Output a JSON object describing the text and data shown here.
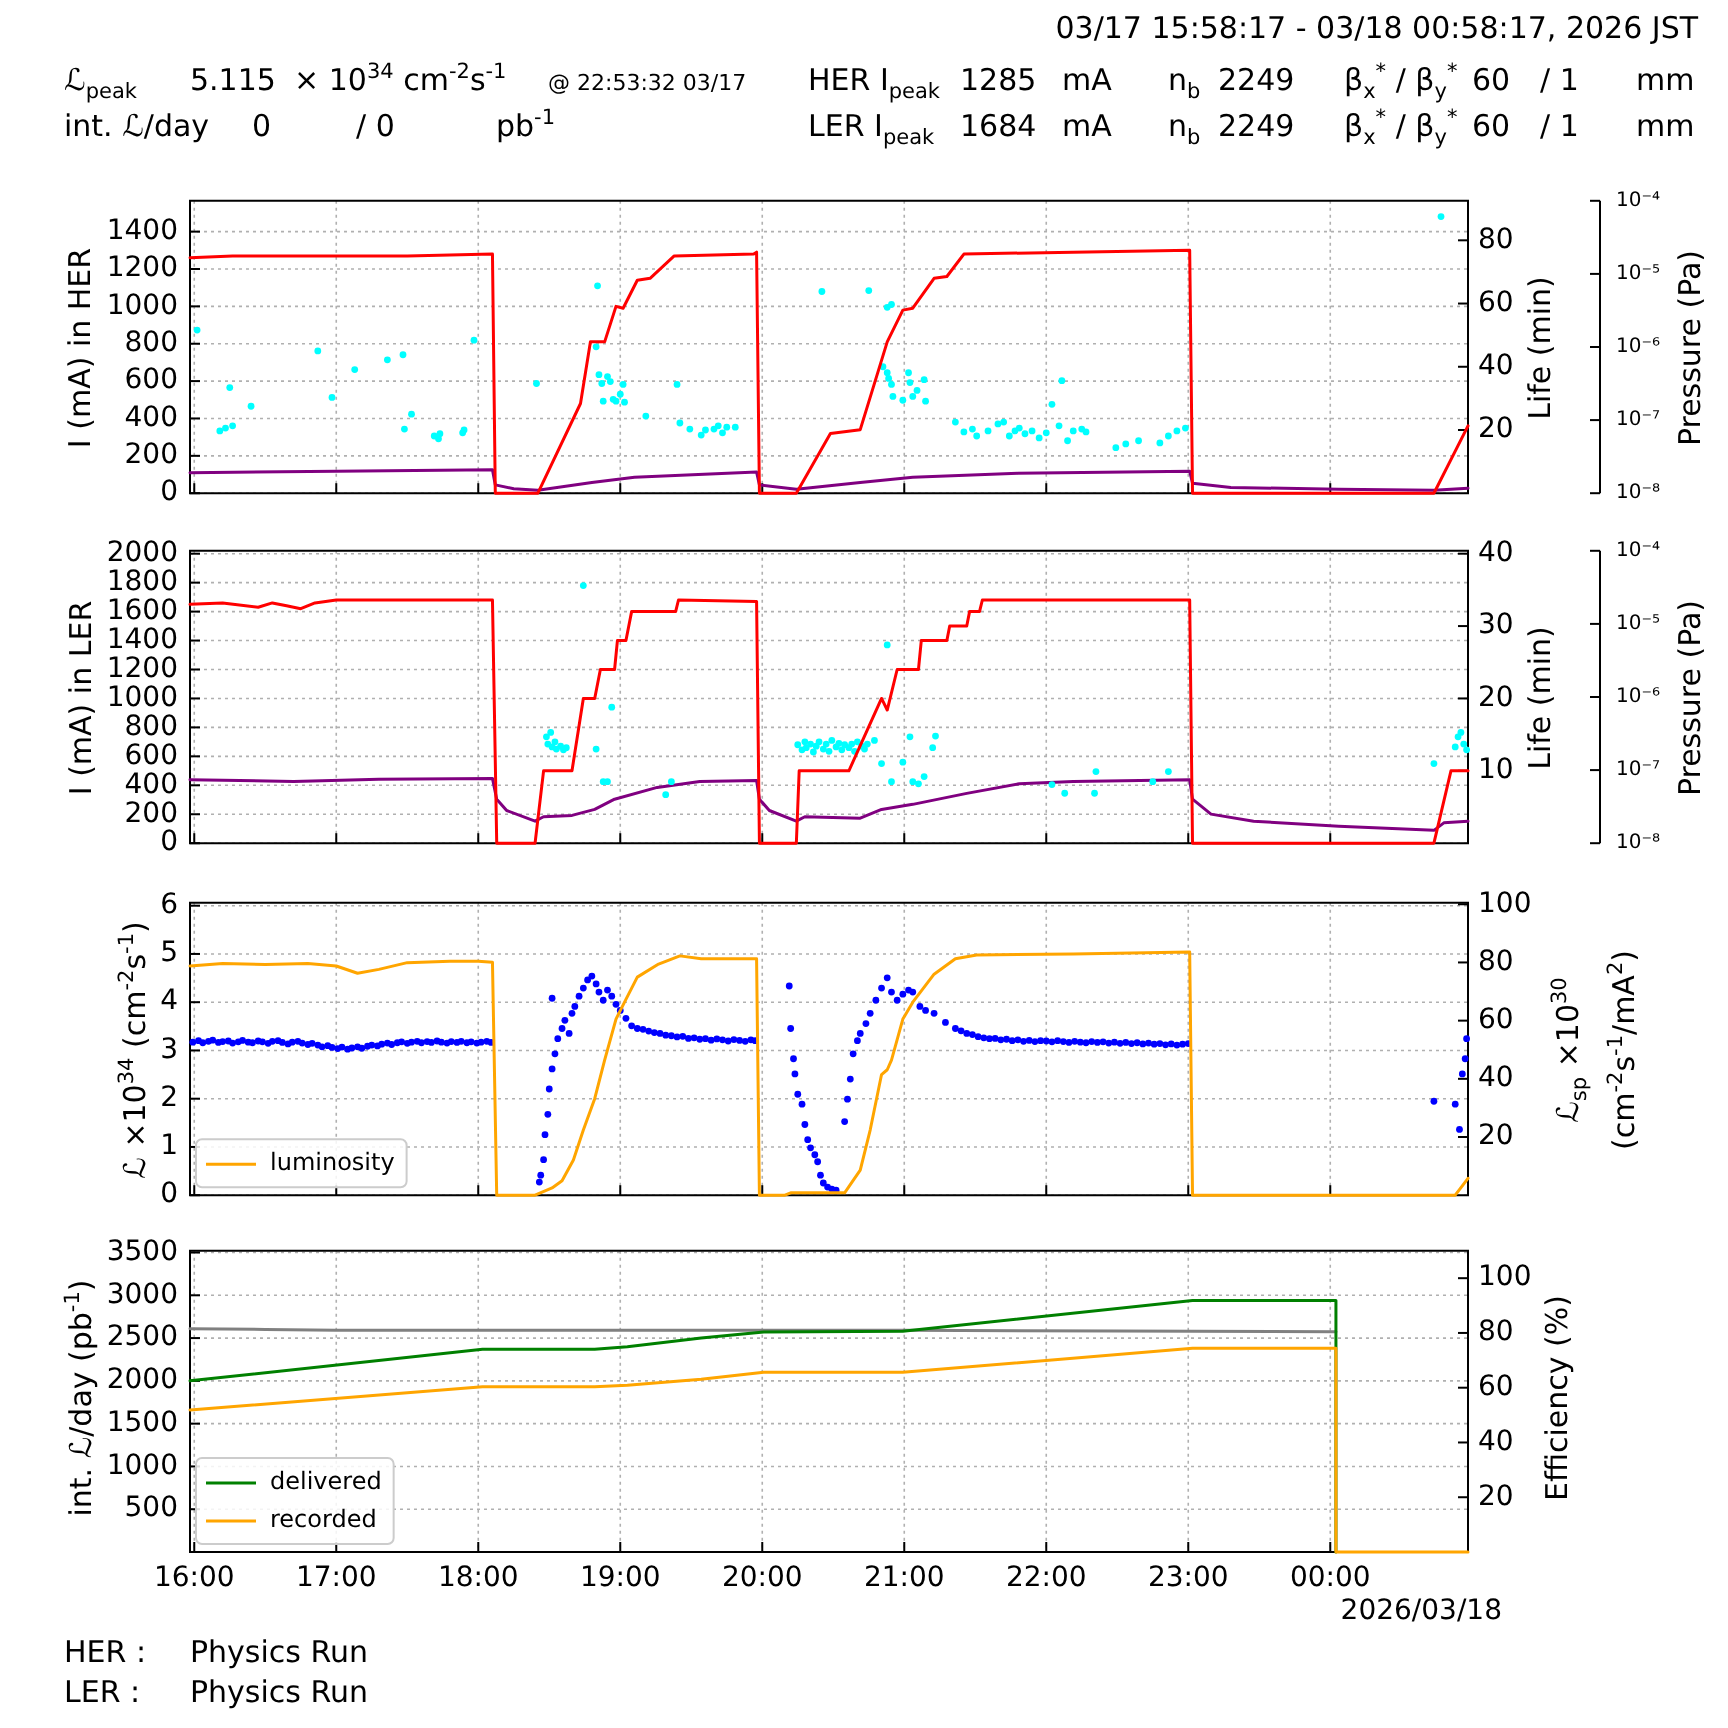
{
  "chart_data": [
    {
      "type": "other",
      "title": "03/17 15:58:17 - 03/18 00:58:17, 2026 JST",
      "annotations": [
        "ℒ$_{peak}$",
        "5.115",
        "× 10$^{34}$ cm$^{-2}$s$^{-1}$",
        "@ 22:53:32 03/17",
        "HER I$_{peak}$",
        "1285",
        "mA",
        "n$_{b}$",
        "2249",
        "β$_{x}$$^{*}$ / β$_{y}$$^{*}$",
        "60",
        "/ 1",
        "mm",
        "int. ℒ/day",
        "0",
        "/ 0",
        "pb$^{-1}$",
        "LER I$_{peak}$",
        "1684",
        "mA",
        "n$_{b}$",
        "2249",
        "β$_{x}$$^{*}$ / β$_{y}$$^{*}$",
        "60",
        "/ 1",
        "mm",
        "HER :",
        "Physics Run",
        "LER :",
        "Physics Run"
      ]
    },
    {
      "type": "line",
      "ylabel": "I (mA) in HER",
      "y2label": "Life (min)",
      "y3label": "Pressure (Pa)",
      "xlim": [
        15.97,
        24.97
      ],
      "xticks": [
        {
          "value": 16,
          "label": null
        },
        {
          "value": 17,
          "label": null
        },
        {
          "value": 18,
          "label": null
        },
        {
          "value": 19,
          "label": null
        },
        {
          "value": 20,
          "label": null
        },
        {
          "value": 21,
          "label": null
        },
        {
          "value": 22,
          "label": null
        },
        {
          "value": 23,
          "label": null
        },
        {
          "value": 24,
          "label": null
        }
      ],
      "ylim": [
        0,
        1565
      ],
      "yticks": [
        0,
        200,
        400,
        600,
        800,
        1000,
        1200,
        1400
      ],
      "y2lim": [
        0,
        92.5
      ],
      "y2ticks": [
        20,
        40,
        60,
        80
      ],
      "y3lim": [
        1e-08,
        0.0001
      ],
      "y3ticks": [
        {
          "value": 1e-08,
          "label": "10⁻⁸"
        },
        {
          "value": 1e-07,
          "label": "10⁻⁷"
        },
        {
          "value": 1e-06,
          "label": "10⁻⁶"
        },
        {
          "value": 1e-05,
          "label": "10⁻⁵"
        },
        {
          "value": 0.0001,
          "label": "10⁻⁴"
        }
      ],
      "log": "y3",
      "grid": true,
      "tick_labels": "y",
      "series": [
        {
          "type": "line",
          "color": "#800080",
          "axis": "y3",
          "x": [
            15.97,
            17.0,
            18.1,
            18.12,
            18.25,
            18.42,
            18.8,
            19.1,
            19.55,
            19.96,
            19.98,
            20.24,
            20.69,
            21.06,
            21.8,
            23.01,
            23.03,
            23.3,
            24.06,
            24.73,
            24.97
          ],
          "values": [
            1.9e-08,
            2e-08,
            2.1e-08,
            1.3e-08,
            1.15e-08,
            1.1e-08,
            1.4e-08,
            1.65e-08,
            1.8e-08,
            1.95e-08,
            1.3e-08,
            1.13e-08,
            1.4e-08,
            1.65e-08,
            1.87e-08,
            2e-08,
            1.37e-08,
            1.2e-08,
            1.13e-08,
            1.1e-08,
            1.17e-08
          ]
        },
        {
          "type": "scatter",
          "color": "#00ffff",
          "axis": "y2",
          "marker": "circle",
          "x": [
            16.02,
            16.18,
            16.22,
            16.25,
            16.27,
            16.4,
            16.87,
            16.97,
            17.13,
            17.36,
            17.47,
            17.48,
            17.53,
            17.69,
            17.72,
            17.73,
            17.89,
            17.9,
            17.97,
            18.41,
            18.84,
            18.83,
            18.85,
            18.87,
            18.88,
            18.91,
            18.93,
            18.95,
            18.97,
            19.0,
            19.02,
            19.03,
            19.18,
            19.4,
            19.42,
            19.49,
            19.57,
            19.6,
            19.66,
            19.69,
            19.72,
            19.75,
            19.81,
            20.42,
            20.75,
            20.88,
            20.91,
            20.85,
            20.88,
            20.89,
            20.91,
            20.92,
            20.99,
            21.03,
            21.04,
            21.06,
            21.09,
            21.14,
            21.15,
            21.36,
            21.42,
            21.48,
            21.51,
            21.59,
            21.66,
            21.7,
            21.74,
            21.78,
            21.81,
            21.85,
            21.9,
            21.95,
            22.0,
            22.04,
            22.09,
            22.11,
            22.15,
            22.19,
            22.25,
            22.28,
            22.49,
            22.56,
            22.65,
            22.8,
            22.86,
            22.92,
            22.98,
            24.78
          ],
          "values": [
            51.6,
            19.7,
            20.6,
            33.4,
            21.3,
            27.5,
            45.0,
            30.3,
            39.1,
            42.2,
            43.8,
            20.3,
            25.0,
            18.1,
            17.2,
            18.8,
            19.1,
            20.0,
            48.4,
            34.7,
            65.6,
            46.3,
            37.5,
            34.7,
            29.1,
            36.9,
            35.3,
            29.7,
            29.1,
            31.3,
            34.4,
            28.8,
            24.4,
            34.4,
            22.2,
            20.3,
            18.4,
            20.0,
            20.3,
            21.3,
            19.1,
            20.9,
            20.9,
            63.8,
            64.1,
            58.8,
            59.7,
            40.0,
            38.1,
            36.3,
            34.4,
            30.6,
            29.4,
            38.1,
            35.0,
            30.6,
            32.5,
            35.9,
            29.1,
            22.5,
            19.4,
            20.3,
            18.1,
            19.7,
            21.9,
            22.5,
            18.1,
            19.7,
            20.6,
            18.8,
            19.7,
            17.5,
            19.1,
            28.1,
            21.3,
            35.6,
            16.6,
            19.7,
            20.3,
            19.4,
            14.4,
            15.6,
            16.6,
            15.9,
            18.1,
            19.7,
            20.6,
            87.5
          ]
        },
        {
          "type": "line",
          "color": "#ff0000",
          "x": [
            15.97,
            16.27,
            16.94,
            17.5,
            18.1,
            18.12,
            18.42,
            18.72,
            18.79,
            18.89,
            18.97,
            19.02,
            19.12,
            19.21,
            19.38,
            19.94,
            19.96,
            19.98,
            20.24,
            20.48,
            20.69,
            20.88,
            20.99,
            21.06,
            21.21,
            21.3,
            21.42,
            22.19,
            23.01,
            23.03,
            24.73,
            24.97
          ],
          "values": [
            1260,
            1270,
            1270,
            1270,
            1280,
            0,
            0,
            480,
            810,
            810,
            1000,
            990,
            1140,
            1150,
            1270,
            1280,
            1290,
            0,
            0,
            320,
            340,
            810,
            980,
            990,
            1150,
            1160,
            1280,
            1290,
            1300,
            0,
            0,
            360
          ]
        }
      ]
    },
    {
      "type": "line",
      "ylabel": "I (mA) in LER",
      "y2label": "Life (min)",
      "y3label": "Pressure (Pa)",
      "xlim": [
        15.97,
        24.97
      ],
      "xticks": [
        {
          "value": 16,
          "label": null
        },
        {
          "value": 17,
          "label": null
        },
        {
          "value": 18,
          "label": null
        },
        {
          "value": 19,
          "label": null
        },
        {
          "value": 20,
          "label": null
        },
        {
          "value": 21,
          "label": null
        },
        {
          "value": 22,
          "label": null
        },
        {
          "value": 23,
          "label": null
        },
        {
          "value": 24,
          "label": null
        }
      ],
      "ylim": [
        0,
        2020
      ],
      "yticks": [
        0,
        200,
        400,
        600,
        800,
        1000,
        1200,
        1400,
        1600,
        1800,
        2000
      ],
      "y2lim": [
        0,
        40.4
      ],
      "y2ticks": [
        10,
        20,
        30,
        40
      ],
      "y3lim": [
        1e-08,
        0.0001
      ],
      "y3ticks": [
        {
          "value": 1e-08,
          "label": "10⁻⁸"
        },
        {
          "value": 1e-07,
          "label": "10⁻⁷"
        },
        {
          "value": 1e-06,
          "label": "10⁻⁶"
        },
        {
          "value": 1e-05,
          "label": "10⁻⁵"
        },
        {
          "value": 0.0001,
          "label": "10⁻⁴"
        }
      ],
      "log": "y3",
      "grid": true,
      "tick_labels": "y",
      "series": [
        {
          "type": "line",
          "color": "#800080",
          "axis": "y3",
          "x": [
            15.97,
            16.7,
            17.3,
            18.1,
            18.13,
            18.2,
            18.4,
            18.46,
            18.66,
            18.82,
            18.96,
            19.26,
            19.56,
            19.96,
            19.98,
            20.05,
            20.24,
            20.3,
            20.69,
            20.84,
            21.06,
            21.44,
            21.81,
            22.19,
            23.01,
            23.03,
            23.16,
            23.46,
            24.06,
            24.73,
            24.8,
            24.97
          ],
          "values": [
            7.4e-08,
            7e-08,
            7.5e-08,
            7.7e-08,
            4e-08,
            2.8e-08,
            2e-08,
            2.3e-08,
            2.4e-08,
            2.9e-08,
            4e-08,
            5.8e-08,
            7e-08,
            7.2e-08,
            4e-08,
            2.8e-08,
            2e-08,
            2.3e-08,
            2.2e-08,
            2.9e-08,
            3.4e-08,
            4.8e-08,
            6.5e-08,
            7e-08,
            7.4e-08,
            4e-08,
            2.5e-08,
            2e-08,
            1.7e-08,
            1.5e-08,
            1.9e-08,
            2e-08
          ]
        },
        {
          "type": "scatter",
          "color": "#00ffff",
          "axis": "y2",
          "marker": "circle",
          "x": [
            18.48,
            18.49,
            18.51,
            18.52,
            18.54,
            18.55,
            18.58,
            18.6,
            18.62,
            18.74,
            18.83,
            18.88,
            18.91,
            18.94,
            19.32,
            19.36,
            20.25,
            20.28,
            20.3,
            20.31,
            20.34,
            20.36,
            20.38,
            20.4,
            20.43,
            20.45,
            20.47,
            20.49,
            20.52,
            20.54,
            20.56,
            20.58,
            20.61,
            20.63,
            20.65,
            20.67,
            20.7,
            20.72,
            20.74,
            20.88,
            20.79,
            20.84,
            20.91,
            20.99,
            21.04,
            21.06,
            21.1,
            21.14,
            21.2,
            21.22,
            22.04,
            22.13,
            22.34,
            22.35,
            22.75,
            22.86,
            24.73,
            24.88,
            24.9,
            24.92,
            24.94,
            24.96
          ],
          "values": [
            14.7,
            13.7,
            15.3,
            13.3,
            14.0,
            13.0,
            13.4,
            12.9,
            13.2,
            35.6,
            13.0,
            8.5,
            8.5,
            18.8,
            6.7,
            8.5,
            13.6,
            12.9,
            14.0,
            13.2,
            13.7,
            12.6,
            13.4,
            14.0,
            13.0,
            13.7,
            12.7,
            14.2,
            13.3,
            13.8,
            12.9,
            13.6,
            13.2,
            13.7,
            12.7,
            14.0,
            13.4,
            13.0,
            13.7,
            27.4,
            14.2,
            11.0,
            8.5,
            11.2,
            14.7,
            8.5,
            8.2,
            9.2,
            13.2,
            14.8,
            8.1,
            6.9,
            6.9,
            9.9,
            8.5,
            9.9,
            11.0,
            13.3,
            14.7,
            15.3,
            13.7,
            12.9
          ]
        },
        {
          "type": "line",
          "color": "#ff0000",
          "x": [
            15.97,
            16.2,
            16.45,
            16.55,
            16.65,
            16.75,
            16.85,
            17.0,
            17.5,
            18.1,
            18.13,
            18.4,
            18.46,
            18.66,
            18.74,
            18.82,
            18.86,
            18.96,
            18.98,
            19.04,
            19.08,
            19.39,
            19.41,
            19.96,
            19.98,
            20.24,
            20.26,
            20.61,
            20.84,
            20.88,
            20.95,
            21.1,
            21.12,
            21.3,
            21.32,
            21.44,
            21.46,
            21.53,
            21.55,
            23.01,
            23.03,
            24.73,
            24.85,
            24.97
          ],
          "values": [
            1650,
            1660,
            1630,
            1660,
            1640,
            1620,
            1660,
            1680,
            1680,
            1680,
            0,
            0,
            500,
            500,
            1000,
            1000,
            1200,
            1200,
            1400,
            1400,
            1600,
            1600,
            1680,
            1670,
            0,
            0,
            500,
            500,
            1000,
            920,
            1200,
            1200,
            1400,
            1400,
            1500,
            1500,
            1600,
            1600,
            1680,
            1680,
            0,
            0,
            500,
            500
          ]
        }
      ]
    },
    {
      "type": "line",
      "ylabel": "ℒ ×10$^{34}$ (cm$^{-2}$s$^{-1}$)",
      "y2label": "ℒ$_{sp}$ ×10$^{30}$\n(cm$^{-2}$s$^{-1}$/mA$^{2}$)",
      "xlim": [
        15.97,
        24.97
      ],
      "xticks": [
        {
          "value": 16,
          "label": null
        },
        {
          "value": 17,
          "label": null
        },
        {
          "value": 18,
          "label": null
        },
        {
          "value": 19,
          "label": null
        },
        {
          "value": 20,
          "label": null
        },
        {
          "value": 21,
          "label": null
        },
        {
          "value": 22,
          "label": null
        },
        {
          "value": 23,
          "label": null
        },
        {
          "value": 24,
          "label": null
        }
      ],
      "ylim": [
        0,
        6.06
      ],
      "yticks": [
        0,
        1,
        2,
        3,
        4,
        5,
        6
      ],
      "y2lim": [
        0,
        100.5
      ],
      "y2ticks": [
        20,
        40,
        60,
        80,
        100
      ],
      "grid": true,
      "tick_labels": "y",
      "legend": "bottom left",
      "series": [
        {
          "type": "scatter",
          "color": "#0000ff",
          "axis": "y2",
          "marker": "circle",
          "x": [
            15.99,
            16.03,
            16.06,
            16.1,
            16.13,
            16.17,
            16.2,
            16.24,
            16.27,
            16.31,
            16.34,
            16.38,
            16.41,
            16.45,
            16.48,
            16.52,
            16.55,
            16.59,
            16.62,
            16.66,
            16.69,
            16.73,
            16.76,
            16.8,
            16.83,
            16.87,
            16.9,
            16.94,
            16.97,
            17.01,
            17.04,
            17.08,
            17.11,
            17.15,
            17.18,
            17.22,
            17.25,
            17.29,
            17.32,
            17.36,
            17.39,
            17.43,
            17.46,
            17.5,
            17.53,
            17.57,
            17.6,
            17.64,
            17.67,
            17.71,
            17.74,
            17.78,
            17.81,
            17.85,
            17.88,
            17.92,
            17.95,
            17.99,
            18.02,
            18.06,
            18.09,
            18.43,
            18.44,
            18.46,
            18.47,
            18.49,
            18.5,
            18.52,
            18.52,
            18.54,
            18.56,
            18.59,
            18.61,
            18.64,
            18.66,
            18.68,
            18.71,
            18.74,
            18.77,
            18.8,
            18.83,
            18.85,
            18.88,
            18.91,
            18.94,
            18.97,
            19.0,
            19.04,
            19.08,
            19.12,
            19.16,
            19.2,
            19.24,
            19.28,
            19.32,
            19.36,
            19.4,
            19.44,
            19.48,
            19.52,
            19.56,
            19.6,
            19.64,
            19.68,
            19.72,
            19.76,
            19.8,
            19.84,
            19.88,
            19.92,
            19.95,
            20.19,
            20.2,
            20.22,
            20.23,
            20.25,
            20.28,
            20.3,
            20.32,
            20.34,
            20.37,
            20.39,
            20.41,
            20.43,
            20.46,
            20.49,
            20.52,
            20.58,
            20.6,
            20.62,
            20.64,
            20.67,
            20.69,
            20.73,
            20.76,
            20.8,
            20.84,
            20.88,
            20.91,
            20.95,
            20.99,
            21.03,
            21.06,
            21.11,
            21.15,
            21.21,
            21.29,
            21.36,
            21.4,
            21.44,
            21.48,
            21.52,
            21.56,
            21.6,
            21.64,
            21.68,
            21.72,
            21.76,
            21.8,
            21.84,
            21.88,
            21.92,
            21.96,
            22.0,
            22.04,
            22.08,
            22.12,
            22.16,
            22.2,
            22.24,
            22.28,
            22.32,
            22.36,
            22.4,
            22.44,
            22.48,
            22.52,
            22.56,
            22.6,
            22.64,
            22.68,
            22.72,
            22.76,
            22.8,
            22.84,
            22.88,
            22.92,
            22.96,
            23.0,
            24.73,
            24.88,
            24.91,
            24.93,
            24.95,
            24.96
          ],
          "values": [
            52.6,
            53.1,
            52.4,
            52.9,
            53.3,
            52.5,
            52.8,
            53.0,
            52.3,
            52.7,
            53.2,
            52.6,
            52.4,
            53.0,
            52.7,
            52.2,
            52.9,
            53.1,
            52.5,
            52.0,
            52.6,
            52.9,
            52.3,
            51.8,
            52.2,
            51.6,
            51.0,
            51.4,
            50.8,
            50.4,
            50.9,
            50.2,
            50.6,
            51.0,
            50.5,
            51.2,
            51.6,
            51.3,
            51.9,
            52.3,
            51.8,
            52.4,
            52.7,
            52.2,
            52.6,
            52.9,
            52.4,
            52.8,
            52.5,
            53.0,
            52.6,
            52.3,
            52.8,
            52.5,
            52.9,
            52.4,
            52.7,
            52.3,
            52.6,
            52.9,
            52.5,
            4.5,
            6.9,
            12.2,
            20.8,
            27.8,
            36.5,
            43.4,
            67.7,
            48.6,
            53.8,
            57.3,
            60.1,
            55.6,
            62.5,
            64.9,
            68.4,
            71.2,
            74.0,
            75.3,
            72.6,
            69.8,
            67.0,
            70.5,
            68.4,
            65.6,
            63.5,
            60.8,
            58.2,
            57.3,
            57.0,
            56.4,
            55.9,
            55.6,
            55.0,
            54.8,
            54.4,
            54.6,
            53.9,
            54.1,
            53.6,
            53.8,
            53.3,
            53.7,
            53.4,
            53.0,
            53.5,
            53.2,
            52.9,
            53.4,
            53.1,
            71.9,
            57.3,
            46.9,
            41.7,
            34.7,
            31.3,
            24.3,
            19.1,
            16.3,
            13.9,
            11.5,
            6.9,
            4.2,
            2.8,
            2.1,
            1.7,
            25.3,
            33.0,
            39.9,
            48.6,
            53.1,
            55.6,
            59.0,
            62.5,
            67.0,
            71.2,
            74.7,
            69.8,
            67.0,
            69.1,
            70.5,
            69.8,
            64.9,
            63.5,
            62.5,
            59.4,
            57.3,
            56.5,
            55.6,
            55.2,
            54.5,
            54.1,
            53.8,
            53.9,
            53.4,
            53.6,
            53.1,
            53.4,
            52.9,
            53.2,
            52.8,
            53.1,
            53.0,
            52.7,
            53.1,
            52.8,
            52.5,
            52.9,
            52.6,
            52.4,
            52.8,
            52.5,
            52.7,
            52.3,
            52.6,
            52.2,
            52.5,
            52.1,
            52.4,
            52.0,
            52.3,
            51.9,
            52.1,
            51.7,
            52.0,
            51.6,
            51.9,
            52.1,
            32.3,
            31.3,
            22.6,
            41.7,
            46.9,
            53.8
          ]
        },
        {
          "type": "line",
          "name": "luminosity",
          "color": "#ffa500",
          "x": [
            15.97,
            16.2,
            16.5,
            16.8,
            17.0,
            17.15,
            17.3,
            17.5,
            17.8,
            18.0,
            18.1,
            18.13,
            18.4,
            18.52,
            18.59,
            18.67,
            18.74,
            18.82,
            18.89,
            18.97,
            19.04,
            19.12,
            19.27,
            19.42,
            19.57,
            19.96,
            19.98,
            20.16,
            20.2,
            20.58,
            20.69,
            20.76,
            20.84,
            20.88,
            20.91,
            20.99,
            21.06,
            21.21,
            21.36,
            21.51,
            22.19,
            23.01,
            23.03,
            24.88,
            24.97
          ],
          "values": [
            4.75,
            4.8,
            4.78,
            4.8,
            4.75,
            4.6,
            4.68,
            4.82,
            4.85,
            4.85,
            4.83,
            0,
            0,
            0.15,
            0.3,
            0.73,
            1.35,
            2.0,
            2.8,
            3.65,
            4.06,
            4.52,
            4.79,
            4.96,
            4.9,
            4.9,
            0,
            0,
            0.05,
            0.05,
            0.52,
            1.35,
            2.5,
            2.6,
            2.8,
            3.65,
            4.0,
            4.58,
            4.9,
            4.98,
            5.0,
            5.04,
            0,
            0,
            0.35
          ]
        }
      ]
    },
    {
      "type": "line",
      "ylabel": "int. ℒ/day (pb$^{-1}$)",
      "y2label": "Efficiency (%)",
      "xlim": [
        15.97,
        24.97
      ],
      "xticks": [
        {
          "value": 16,
          "label": "16:00"
        },
        {
          "value": 17,
          "label": "17:00"
        },
        {
          "value": 18,
          "label": "18:00"
        },
        {
          "value": 19,
          "label": "19:00"
        },
        {
          "value": 20,
          "label": "20:00"
        },
        {
          "value": 21,
          "label": "21:00"
        },
        {
          "value": 22,
          "label": "22:00"
        },
        {
          "value": 23,
          "label": "23:00"
        },
        {
          "value": 24,
          "label": "00:00"
        }
      ],
      "ylim": [
        0,
        3520
      ],
      "yticks": [
        500,
        1000,
        1500,
        2000,
        2500,
        3000,
        3500
      ],
      "y2lim": [
        0,
        110
      ],
      "y2ticks": [
        20,
        40,
        60,
        80,
        100
      ],
      "grid": true,
      "legend": "bottom left",
      "annotations": [
        "2026/03/18"
      ],
      "series": [
        {
          "type": "line",
          "color": "#808080",
          "axis": "y2",
          "x": [
            15.97,
            16.5,
            17.0,
            18.0,
            20.0,
            21.0,
            22.5,
            24.04
          ],
          "values": [
            81.5,
            81.3,
            81.0,
            81.0,
            81.0,
            81.0,
            80.7,
            80.4
          ]
        },
        {
          "type": "line",
          "name": "delivered",
          "color": "#008000",
          "x": [
            15.97,
            18.03,
            18.82,
            19.05,
            19.57,
            20.01,
            20.99,
            23.03,
            24.04,
            24.04
          ],
          "values": [
            2000,
            2370,
            2370,
            2400,
            2500,
            2570,
            2580,
            2940,
            2940,
            0
          ]
        },
        {
          "type": "line",
          "name": "recorded",
          "color": "#ffa500",
          "x": [
            15.97,
            18.03,
            18.82,
            19.05,
            19.57,
            20.01,
            20.99,
            23.03,
            24.04,
            24.04,
            24.97
          ],
          "values": [
            1660,
            1930,
            1930,
            1950,
            2020,
            2100,
            2100,
            2380,
            2380,
            0,
            0
          ]
        }
      ]
    }
  ]
}
